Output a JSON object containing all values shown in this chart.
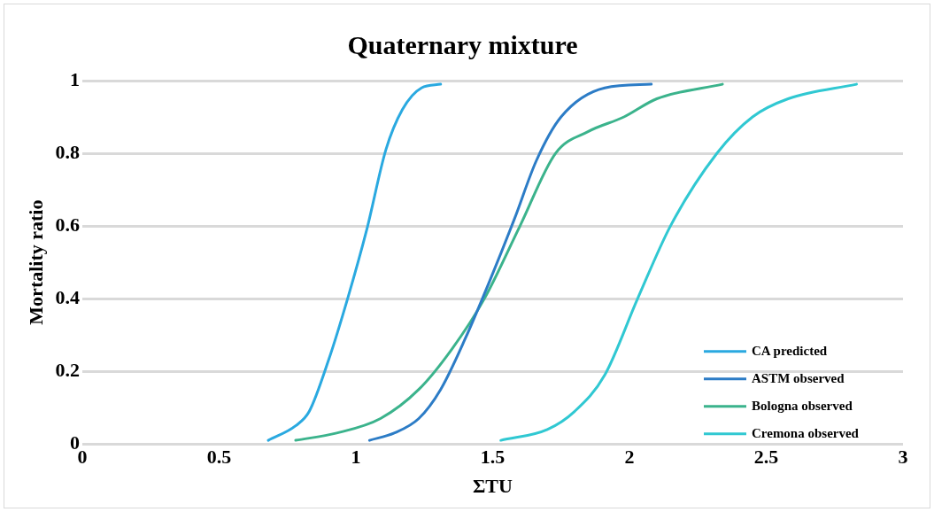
{
  "chart_data": {
    "type": "line",
    "title": "Quaternary mixture",
    "xlabel": "ΣTU",
    "ylabel": "Mortality ratio",
    "xlim": [
      0,
      3
    ],
    "xticks": [
      0,
      0.5,
      1,
      1.5,
      2,
      2.5,
      3
    ],
    "ylim": [
      0,
      1
    ],
    "yticks": [
      0,
      0.2,
      0.4,
      0.6,
      0.8,
      1
    ],
    "grid": "y",
    "legend": "bottom right",
    "marker": "none",
    "line_style": "solid",
    "series": [
      {
        "name": "CA predicted",
        "color": "#2aa9e0",
        "x": [
          0.68,
          0.78,
          0.83,
          0.9,
          0.97,
          1.04,
          1.11,
          1.17,
          1.24,
          1.31
        ],
        "values": [
          0.01,
          0.05,
          0.09,
          0.23,
          0.4,
          0.59,
          0.81,
          0.92,
          0.98,
          0.99
        ]
      },
      {
        "name": "ASTM observed",
        "color": "#2c7cc6",
        "x": [
          1.05,
          1.14,
          1.23,
          1.31,
          1.4,
          1.49,
          1.58,
          1.66,
          1.75,
          1.91,
          2.08
        ],
        "values": [
          0.01,
          0.03,
          0.07,
          0.15,
          0.29,
          0.45,
          0.62,
          0.78,
          0.9,
          0.98,
          0.99
        ]
      },
      {
        "name": "Bologna observed",
        "color": "#3bb38c",
        "x": [
          0.78,
          0.93,
          1.09,
          1.23,
          1.35,
          1.47,
          1.6,
          1.73,
          1.85,
          1.98,
          2.1,
          2.34
        ],
        "values": [
          0.01,
          0.03,
          0.07,
          0.15,
          0.26,
          0.4,
          0.6,
          0.8,
          0.86,
          0.9,
          0.95,
          0.99
        ]
      },
      {
        "name": "Cremona observed",
        "color": "#30c8d2",
        "x": [
          1.53,
          1.7,
          1.8,
          1.91,
          2.03,
          2.15,
          2.32,
          2.45,
          2.58,
          2.83
        ],
        "values": [
          0.01,
          0.04,
          0.09,
          0.19,
          0.4,
          0.6,
          0.8,
          0.9,
          0.95,
          0.99
        ]
      }
    ]
  }
}
